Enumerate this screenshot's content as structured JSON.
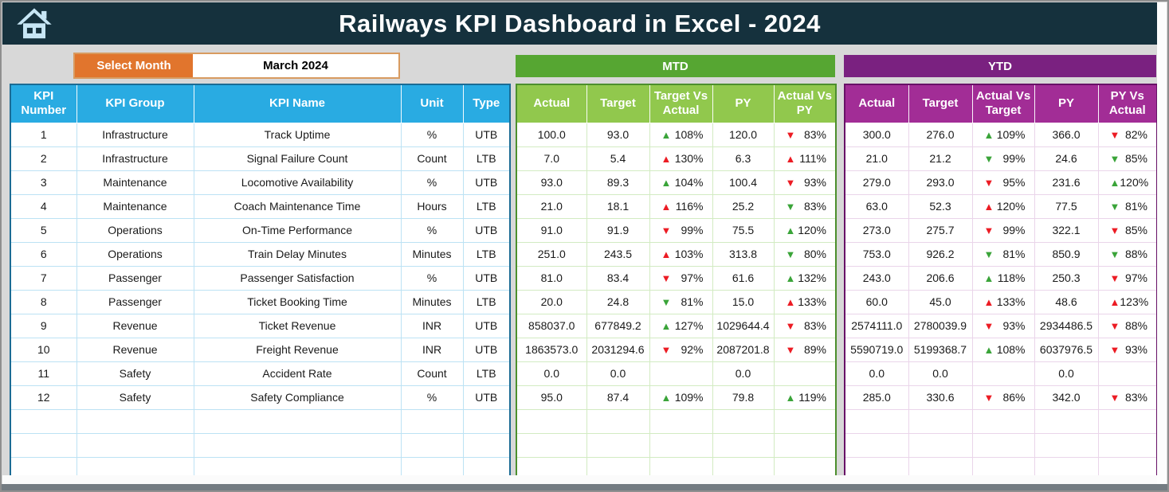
{
  "header": {
    "title": "Railways KPI Dashboard in Excel - 2024"
  },
  "controls": {
    "select_month_label": "Select Month",
    "selected_month": "March 2024"
  },
  "colors": {
    "top_bar": "#15313D",
    "kpi_header_blue": "#29ABE2",
    "mtd_title_green": "#56A632",
    "mtd_header_green": "#91C84D",
    "ytd_title_purple": "#7A2180",
    "ytd_header_magenta": "#A22D96",
    "select_month_orange": "#E1752D",
    "up_green": "#3AA439",
    "down_red": "#EC1C24"
  },
  "kpi_table": {
    "headers": [
      "KPI Number",
      "KPI Group",
      "KPI Name",
      "Unit",
      "Type"
    ],
    "empty_rows": 3,
    "rows": [
      {
        "number": "1",
        "group": "Infrastructure",
        "name": "Track Uptime",
        "unit": "%",
        "type": "UTB"
      },
      {
        "number": "2",
        "group": "Infrastructure",
        "name": "Signal Failure Count",
        "unit": "Count",
        "type": "LTB"
      },
      {
        "number": "3",
        "group": "Maintenance",
        "name": "Locomotive Availability",
        "unit": "%",
        "type": "UTB"
      },
      {
        "number": "4",
        "group": "Maintenance",
        "name": "Coach Maintenance Time",
        "unit": "Hours",
        "type": "LTB"
      },
      {
        "number": "5",
        "group": "Operations",
        "name": "On-Time Performance",
        "unit": "%",
        "type": "UTB"
      },
      {
        "number": "6",
        "group": "Operations",
        "name": "Train Delay Minutes",
        "unit": "Minutes",
        "type": "LTB"
      },
      {
        "number": "7",
        "group": "Passenger",
        "name": "Passenger Satisfaction",
        "unit": "%",
        "type": "UTB"
      },
      {
        "number": "8",
        "group": "Passenger",
        "name": "Ticket Booking Time",
        "unit": "Minutes",
        "type": "LTB"
      },
      {
        "number": "9",
        "group": "Revenue",
        "name": "Ticket Revenue",
        "unit": "INR",
        "type": "UTB"
      },
      {
        "number": "10",
        "group": "Revenue",
        "name": "Freight Revenue",
        "unit": "INR",
        "type": "UTB"
      },
      {
        "number": "11",
        "group": "Safety",
        "name": "Accident Rate",
        "unit": "Count",
        "type": "LTB"
      },
      {
        "number": "12",
        "group": "Safety",
        "name": "Safety Compliance",
        "unit": "%",
        "type": "UTB"
      }
    ]
  },
  "mtd": {
    "title": "MTD",
    "headers": [
      "Actual",
      "Target",
      "Target Vs Actual",
      "PY",
      "Actual Vs PY"
    ],
    "empty_rows": 3,
    "rows": [
      {
        "actual": "100.0",
        "target": "93.0",
        "target_compare": {
          "dir": "up",
          "color": "green",
          "value": "108%"
        },
        "py": "120.0",
        "py_compare": {
          "dir": "down",
          "color": "red",
          "value": "83%"
        }
      },
      {
        "actual": "7.0",
        "target": "5.4",
        "target_compare": {
          "dir": "up",
          "color": "red",
          "value": "130%"
        },
        "py": "6.3",
        "py_compare": {
          "dir": "up",
          "color": "red",
          "value": "111%"
        }
      },
      {
        "actual": "93.0",
        "target": "89.3",
        "target_compare": {
          "dir": "up",
          "color": "green",
          "value": "104%"
        },
        "py": "100.4",
        "py_compare": {
          "dir": "down",
          "color": "red",
          "value": "93%"
        }
      },
      {
        "actual": "21.0",
        "target": "18.1",
        "target_compare": {
          "dir": "up",
          "color": "red",
          "value": "116%"
        },
        "py": "25.2",
        "py_compare": {
          "dir": "down",
          "color": "green",
          "value": "83%"
        }
      },
      {
        "actual": "91.0",
        "target": "91.9",
        "target_compare": {
          "dir": "down",
          "color": "red",
          "value": "99%"
        },
        "py": "75.5",
        "py_compare": {
          "dir": "up",
          "color": "green",
          "value": "120%"
        }
      },
      {
        "actual": "251.0",
        "target": "243.5",
        "target_compare": {
          "dir": "up",
          "color": "red",
          "value": "103%"
        },
        "py": "313.8",
        "py_compare": {
          "dir": "down",
          "color": "green",
          "value": "80%"
        }
      },
      {
        "actual": "81.0",
        "target": "83.4",
        "target_compare": {
          "dir": "down",
          "color": "red",
          "value": "97%"
        },
        "py": "61.6",
        "py_compare": {
          "dir": "up",
          "color": "green",
          "value": "132%"
        }
      },
      {
        "actual": "20.0",
        "target": "24.8",
        "target_compare": {
          "dir": "down",
          "color": "green",
          "value": "81%"
        },
        "py": "15.0",
        "py_compare": {
          "dir": "up",
          "color": "red",
          "value": "133%"
        }
      },
      {
        "actual": "858037.0",
        "target": "677849.2",
        "target_compare": {
          "dir": "up",
          "color": "green",
          "value": "127%"
        },
        "py": "1029644.4",
        "py_compare": {
          "dir": "down",
          "color": "red",
          "value": "83%"
        }
      },
      {
        "actual": "1863573.0",
        "target": "2031294.6",
        "target_compare": {
          "dir": "down",
          "color": "red",
          "value": "92%"
        },
        "py": "2087201.8",
        "py_compare": {
          "dir": "down",
          "color": "red",
          "value": "89%"
        }
      },
      {
        "actual": "0.0",
        "target": "0.0",
        "target_compare": null,
        "py": "0.0",
        "py_compare": null
      },
      {
        "actual": "95.0",
        "target": "87.4",
        "target_compare": {
          "dir": "up",
          "color": "green",
          "value": "109%"
        },
        "py": "79.8",
        "py_compare": {
          "dir": "up",
          "color": "green",
          "value": "119%"
        }
      }
    ]
  },
  "ytd": {
    "title": "YTD",
    "headers": [
      "Actual",
      "Target",
      "Actual Vs Target",
      "PY",
      "PY Vs Actual"
    ],
    "empty_rows": 3,
    "rows": [
      {
        "actual": "300.0",
        "target": "276.0",
        "target_compare": {
          "dir": "up",
          "color": "green",
          "value": "109%"
        },
        "py": "366.0",
        "py_compare": {
          "dir": "down",
          "color": "red",
          "value": "82%"
        }
      },
      {
        "actual": "21.0",
        "target": "21.2",
        "target_compare": {
          "dir": "down",
          "color": "green",
          "value": "99%"
        },
        "py": "24.6",
        "py_compare": {
          "dir": "down",
          "color": "green",
          "value": "85%"
        }
      },
      {
        "actual": "279.0",
        "target": "293.0",
        "target_compare": {
          "dir": "down",
          "color": "red",
          "value": "95%"
        },
        "py": "231.6",
        "py_compare": {
          "dir": "up",
          "color": "green",
          "value": "120%"
        }
      },
      {
        "actual": "63.0",
        "target": "52.3",
        "target_compare": {
          "dir": "up",
          "color": "red",
          "value": "120%"
        },
        "py": "77.5",
        "py_compare": {
          "dir": "down",
          "color": "green",
          "value": "81%"
        }
      },
      {
        "actual": "273.0",
        "target": "275.7",
        "target_compare": {
          "dir": "down",
          "color": "red",
          "value": "99%"
        },
        "py": "322.1",
        "py_compare": {
          "dir": "down",
          "color": "red",
          "value": "85%"
        }
      },
      {
        "actual": "753.0",
        "target": "926.2",
        "target_compare": {
          "dir": "down",
          "color": "green",
          "value": "81%"
        },
        "py": "850.9",
        "py_compare": {
          "dir": "down",
          "color": "green",
          "value": "88%"
        }
      },
      {
        "actual": "243.0",
        "target": "206.6",
        "target_compare": {
          "dir": "up",
          "color": "green",
          "value": "118%"
        },
        "py": "250.3",
        "py_compare": {
          "dir": "down",
          "color": "red",
          "value": "97%"
        }
      },
      {
        "actual": "60.0",
        "target": "45.0",
        "target_compare": {
          "dir": "up",
          "color": "red",
          "value": "133%"
        },
        "py": "48.6",
        "py_compare": {
          "dir": "up",
          "color": "red",
          "value": "123%"
        }
      },
      {
        "actual": "2574111.0",
        "target": "2780039.9",
        "target_compare": {
          "dir": "down",
          "color": "red",
          "value": "93%"
        },
        "py": "2934486.5",
        "py_compare": {
          "dir": "down",
          "color": "red",
          "value": "88%"
        }
      },
      {
        "actual": "5590719.0",
        "target": "5199368.7",
        "target_compare": {
          "dir": "up",
          "color": "green",
          "value": "108%"
        },
        "py": "6037976.5",
        "py_compare": {
          "dir": "down",
          "color": "red",
          "value": "93%"
        }
      },
      {
        "actual": "0.0",
        "target": "0.0",
        "target_compare": null,
        "py": "0.0",
        "py_compare": null
      },
      {
        "actual": "285.0",
        "target": "330.6",
        "target_compare": {
          "dir": "down",
          "color": "red",
          "value": "86%"
        },
        "py": "342.0",
        "py_compare": {
          "dir": "down",
          "color": "red",
          "value": "83%"
        }
      }
    ]
  }
}
